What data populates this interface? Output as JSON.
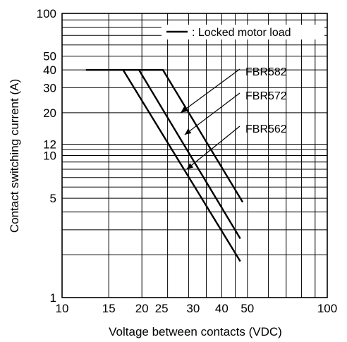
{
  "chart_data": {
    "type": "line",
    "xlabel": "Voltage between contacts (VDC)",
    "ylabel": "Contact switching current (A)",
    "xscale": "log",
    "yscale": "log",
    "xlim": [
      10,
      100
    ],
    "ylim": [
      1,
      100
    ],
    "x_tick_labels": [
      "10",
      "15",
      "20",
      "25",
      "30",
      "40",
      "50",
      "100"
    ],
    "x_ticks": [
      10,
      15,
      20,
      25,
      30,
      40,
      50,
      100
    ],
    "y_tick_labels": [
      "1",
      "5",
      "10",
      "12",
      "20",
      "30",
      "40",
      "50",
      "100"
    ],
    "y_ticks": [
      1,
      5,
      10,
      12,
      20,
      30,
      40,
      50,
      100
    ],
    "x_gridlines": [
      10,
      15,
      20,
      25,
      30,
      35,
      40,
      45,
      50,
      60,
      70,
      80,
      90,
      100
    ],
    "y_gridlines": [
      1,
      2,
      3,
      4,
      5,
      6,
      7,
      8,
      9,
      10,
      11,
      12,
      20,
      30,
      40,
      50,
      60,
      70,
      80,
      90,
      100
    ],
    "legend": {
      "label": ": Locked motor load",
      "position": "top-right"
    },
    "series": [
      {
        "name": "FBR582",
        "points": [
          [
            12.3,
            40
          ],
          [
            24,
            40
          ],
          [
            48,
            4.7
          ]
        ]
      },
      {
        "name": "FBR572",
        "points": [
          [
            19.5,
            40
          ],
          [
            47,
            2.6
          ]
        ]
      },
      {
        "name": "FBR562",
        "points": [
          [
            17,
            40
          ],
          [
            47,
            1.8
          ]
        ]
      }
    ],
    "annotations": [
      {
        "text": "FBR582",
        "target": [
          28,
          20
        ]
      },
      {
        "text": "FBR572",
        "target": [
          29,
          14
        ]
      },
      {
        "text": "FBR562",
        "target": [
          29.5,
          8
        ]
      }
    ]
  }
}
